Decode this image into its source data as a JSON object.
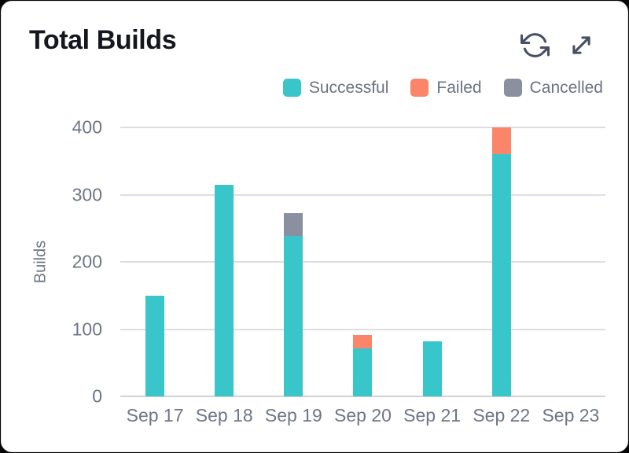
{
  "header": {
    "title": "Total Builds",
    "icons": [
      {
        "name": "refresh-icon"
      },
      {
        "name": "expand-icon"
      }
    ]
  },
  "colors": {
    "successful": "#38c6cb",
    "failed": "#fa8568",
    "cancelled": "#8b90a0",
    "icon": "#475062",
    "card_bg": "#ffffff",
    "page_bg": "#060606",
    "grid": "#dcdee4",
    "axis_text": "#6e7585",
    "legend_text": "#6b7280",
    "title_text": "#15171e"
  },
  "chart_data": {
    "type": "bar",
    "stacked": true,
    "title": "Total Builds",
    "xlabel": "",
    "ylabel": "Builds",
    "ylim": [
      0,
      400
    ],
    "yticks": [
      0,
      100,
      200,
      300,
      400
    ],
    "grid": true,
    "legend_position": "top-right",
    "categories": [
      "Sep 17",
      "Sep 18",
      "Sep 19",
      "Sep 20",
      "Sep 21",
      "Sep 22",
      "Sep 23"
    ],
    "series": [
      {
        "name": "Successful",
        "color": "#38c6cb",
        "values": [
          150,
          315,
          239,
          71,
          82,
          360,
          0
        ]
      },
      {
        "name": "Failed",
        "color": "#fa8568",
        "values": [
          0,
          0,
          0,
          20,
          0,
          40,
          0
        ]
      },
      {
        "name": "Cancelled",
        "color": "#8b90a0",
        "values": [
          0,
          0,
          34,
          0,
          0,
          0,
          0
        ]
      }
    ]
  }
}
